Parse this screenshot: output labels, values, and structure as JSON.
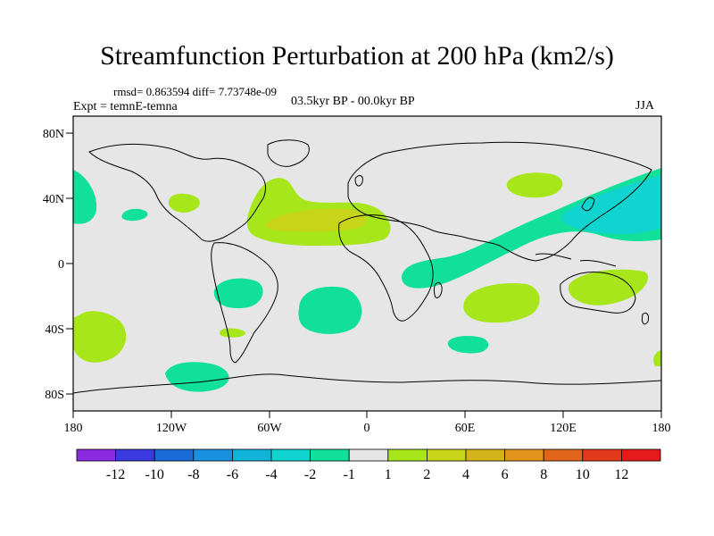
{
  "title": "Streamfunction Perturbation at 200 hPa (km2/s)",
  "stats": "rmsd= 0.863594  diff= 7.73748e-09",
  "experiment": "Expt = temnE-temna",
  "period": "03.5kyr BP - 00.0kyr BP",
  "season": "JJA",
  "lat_labels": [
    "80N",
    "40N",
    "0",
    "40S",
    "80S"
  ],
  "lon_labels": [
    "180",
    "120W",
    "60W",
    "0",
    "60E",
    "120E",
    "180"
  ],
  "colorbar": {
    "colors": [
      "#8a2be2",
      "#3a3ae0",
      "#1a6ad8",
      "#1a90e0",
      "#10b4d8",
      "#10d4d0",
      "#10e09a",
      "#e6e6e6",
      "#a6e61a",
      "#c8d41a",
      "#d4b41a",
      "#e0941a",
      "#e0641a",
      "#e03a1a",
      "#e61a1a"
    ],
    "labels": [
      "-12",
      "-10",
      "-8",
      "-6",
      "-4",
      "-2",
      "-1",
      "1",
      "2",
      "4",
      "6",
      "8",
      "10",
      "12"
    ]
  },
  "colors": {
    "background_field": "#e6e6e6",
    "neg_light": "#10e09a",
    "neg_mid": "#10d4d0",
    "pos_light": "#a6e61a",
    "pos_mid": "#c8d41a"
  }
}
